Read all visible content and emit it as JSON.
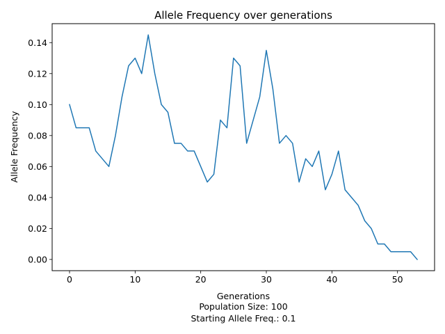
{
  "chart_data": {
    "type": "line",
    "title": "Allele Frequency over generations",
    "xlabel": "Generations",
    "xlabel_lines": [
      "Population Size: 100",
      "Starting Allele Freq.: 0.1"
    ],
    "ylabel": "Allele Frequency",
    "xlim": [
      -2.65,
      55.65
    ],
    "ylim": [
      -0.00725,
      0.15225
    ],
    "xticks": [
      0,
      10,
      20,
      30,
      40,
      50
    ],
    "yticks": [
      0.0,
      0.02,
      0.04,
      0.06,
      0.08,
      0.1,
      0.12,
      0.14
    ],
    "ytick_labels": [
      "0.00",
      "0.02",
      "0.04",
      "0.06",
      "0.08",
      "0.10",
      "0.12",
      "0.14"
    ],
    "grid": false,
    "color": "#1f77b4",
    "series": [
      {
        "x": [
          0,
          1,
          2,
          3,
          4,
          5,
          6,
          7,
          8,
          9,
          10,
          11,
          12,
          13,
          14,
          15,
          16,
          17,
          18,
          19,
          20,
          21,
          22,
          23,
          24,
          25,
          26,
          27,
          28,
          29,
          30,
          31,
          32,
          33,
          34,
          35,
          36,
          37,
          38,
          39,
          40,
          41,
          42,
          43,
          44,
          45,
          46,
          47,
          48,
          49,
          50,
          51,
          52,
          53
        ],
        "values": [
          0.1,
          0.085,
          0.085,
          0.085,
          0.07,
          0.065,
          0.06,
          0.08,
          0.105,
          0.125,
          0.13,
          0.12,
          0.145,
          0.12,
          0.1,
          0.095,
          0.075,
          0.075,
          0.07,
          0.07,
          0.06,
          0.05,
          0.055,
          0.09,
          0.085,
          0.13,
          0.125,
          0.075,
          0.09,
          0.105,
          0.135,
          0.11,
          0.075,
          0.08,
          0.075,
          0.05,
          0.065,
          0.06,
          0.07,
          0.045,
          0.055,
          0.07,
          0.045,
          0.04,
          0.035,
          0.025,
          0.02,
          0.01,
          0.01,
          0.005,
          0.005,
          0.005,
          0.005,
          0.0
        ]
      }
    ]
  }
}
